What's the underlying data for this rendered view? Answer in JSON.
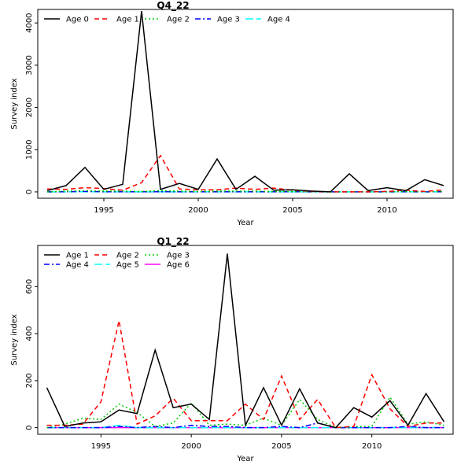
{
  "chart_data": [
    {
      "type": "line",
      "title": "Q4_22",
      "xlabel": "Year",
      "ylabel": "Survey index",
      "xlim": [
        1991.5,
        2013.5
      ],
      "ylim": [
        -150,
        4320
      ],
      "xticks": [
        1995,
        2000,
        2005,
        2010
      ],
      "yticks": [
        0,
        1000,
        2000,
        3000,
        4000
      ],
      "legend_position": "top-left",
      "x": [
        1992,
        1993,
        1994,
        1995,
        1996,
        1997,
        1998,
        1999,
        2000,
        2001,
        2002,
        2003,
        2004,
        2005,
        2006,
        2007,
        2008,
        2009,
        2010,
        2011,
        2012,
        2013
      ],
      "series": [
        {
          "name": "Age 0",
          "color": "#000000",
          "dash": "solid",
          "values": [
            30,
            150,
            580,
            60,
            180,
            4280,
            60,
            200,
            60,
            780,
            60,
            370,
            40,
            50,
            20,
            0,
            430,
            30,
            100,
            30,
            290,
            150
          ]
        },
        {
          "name": "Age 1",
          "color": "#ff0000",
          "dash": "dashed",
          "values": [
            70,
            60,
            100,
            80,
            40,
            220,
            860,
            70,
            50,
            50,
            90,
            60,
            90,
            40,
            10,
            0,
            0,
            0,
            10,
            40,
            10,
            50
          ]
        },
        {
          "name": "Age 2",
          "color": "#00cd00",
          "dash": "dotted",
          "values": [
            0,
            20,
            30,
            20,
            20,
            10,
            30,
            20,
            10,
            20,
            20,
            20,
            10,
            10,
            5,
            0,
            0,
            0,
            0,
            10,
            5,
            10
          ]
        },
        {
          "name": "Age 3",
          "color": "#0000ff",
          "dash": "dashdot",
          "values": [
            0,
            5,
            10,
            5,
            5,
            5,
            5,
            5,
            5,
            5,
            5,
            5,
            5,
            5,
            0,
            0,
            0,
            0,
            0,
            5,
            0,
            5
          ]
        },
        {
          "name": "Age 4",
          "color": "#00ffff",
          "dash": "longdash",
          "values": [
            0,
            0,
            5,
            0,
            0,
            0,
            0,
            0,
            0,
            0,
            0,
            0,
            0,
            0,
            0,
            0,
            0,
            0,
            0,
            0,
            0,
            0
          ]
        }
      ]
    },
    {
      "type": "line",
      "title": "Q1_22",
      "xlabel": "Year",
      "ylabel": "Survey index",
      "xlim": [
        1991.5,
        2014.5
      ],
      "ylim": [
        -28,
        775
      ],
      "xticks": [
        1995,
        2000,
        2005,
        2010
      ],
      "yticks": [
        0,
        200,
        400,
        600
      ],
      "legend_position": "top-left",
      "x": [
        1992,
        1993,
        1994,
        1995,
        1996,
        1997,
        1998,
        1999,
        2000,
        2001,
        2002,
        2003,
        2004,
        2005,
        2006,
        2007,
        2008,
        2009,
        2010,
        2011,
        2012,
        2013,
        2014
      ],
      "series": [
        {
          "name": "Age 1",
          "color": "#000000",
          "dash": "solid",
          "values": [
            170,
            5,
            20,
            25,
            75,
            60,
            330,
            85,
            100,
            35,
            740,
            10,
            170,
            10,
            165,
            20,
            0,
            85,
            45,
            115,
            10,
            145,
            25
          ]
        },
        {
          "name": "Age 2",
          "color": "#ff0000",
          "dash": "dashed",
          "values": [
            10,
            10,
            15,
            110,
            455,
            15,
            50,
            125,
            30,
            30,
            30,
            100,
            35,
            220,
            35,
            120,
            0,
            5,
            225,
            80,
            5,
            20,
            20
          ]
        },
        {
          "name": "Age 3",
          "color": "#00cd00",
          "dash": "dotted",
          "values": [
            0,
            15,
            40,
            35,
            100,
            65,
            5,
            20,
            105,
            10,
            15,
            10,
            40,
            10,
            120,
            35,
            0,
            5,
            5,
            130,
            15,
            25,
            10
          ]
        },
        {
          "name": "Age 4",
          "color": "#0000ff",
          "dash": "dashdot",
          "values": [
            0,
            0,
            0,
            0,
            5,
            0,
            5,
            0,
            10,
            5,
            5,
            0,
            0,
            5,
            0,
            20,
            0,
            0,
            0,
            0,
            5,
            0,
            0
          ]
        },
        {
          "name": "Age 5",
          "color": "#00ffff",
          "dash": "longdash",
          "values": [
            0,
            0,
            0,
            0,
            10,
            0,
            0,
            0,
            0,
            0,
            0,
            0,
            0,
            0,
            0,
            0,
            0,
            0,
            0,
            0,
            0,
            0,
            0
          ]
        },
        {
          "name": "Age 6",
          "color": "#ff00ff",
          "dash": "solid",
          "values": [
            0,
            0,
            0,
            0,
            0,
            0,
            0,
            0,
            0,
            0,
            0,
            0,
            0,
            0,
            0,
            0,
            0,
            0,
            0,
            0,
            0,
            0,
            0
          ]
        }
      ]
    }
  ]
}
